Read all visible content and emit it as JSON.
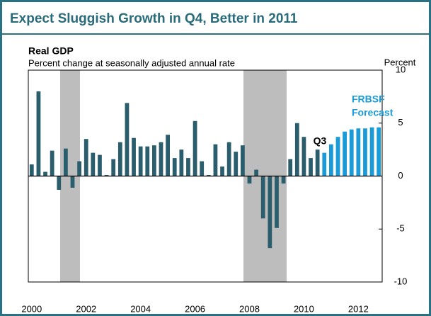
{
  "chart_data": {
    "type": "bar",
    "title": "Expect Sluggish Growth in Q4, Better in 2011",
    "subtitle": "Real GDP",
    "y_axis_label": "Percent change at seasonally adjusted annual rate",
    "y_unit_label": "Percent",
    "annotations": [
      "Q3",
      "FRBSF",
      "Forecast"
    ],
    "categories": [
      "2000",
      null,
      null,
      null,
      null,
      null,
      null,
      null,
      "2002",
      null,
      null,
      null,
      null,
      null,
      null,
      null,
      "2004",
      null,
      null,
      null,
      null,
      null,
      null,
      null,
      "2006",
      null,
      null,
      null,
      null,
      null,
      null,
      null,
      "2008",
      null,
      null,
      null,
      null,
      null,
      null,
      null,
      "2010",
      null,
      null,
      null,
      null,
      null,
      null,
      null,
      "2012",
      null,
      null,
      null
    ],
    "series": [
      {
        "color": "#2b5e6c",
        "values": [
          1.1,
          8.0,
          0.4,
          2.4,
          -1.3,
          2.6,
          -1.1,
          1.4,
          3.5,
          2.2,
          2.0,
          0.1,
          1.6,
          3.2,
          6.9,
          3.6,
          2.8,
          2.8,
          2.9,
          3.2,
          3.9,
          1.7,
          2.5,
          1.7,
          5.2,
          1.4,
          0.1,
          3.0,
          0.9,
          3.2,
          2.3,
          2.9,
          -0.7,
          0.6,
          -4.0,
          -6.8,
          -4.9,
          -0.7,
          1.6,
          5.0,
          3.7,
          1.7,
          2.5,
          null,
          null,
          null,
          null,
          null,
          null,
          null,
          null,
          null
        ]
      },
      {
        "color": "#1a9bd7",
        "values": [
          null,
          null,
          null,
          null,
          null,
          null,
          null,
          null,
          null,
          null,
          null,
          null,
          null,
          null,
          null,
          null,
          null,
          null,
          null,
          null,
          null,
          null,
          null,
          null,
          null,
          null,
          null,
          null,
          null,
          null,
          null,
          null,
          null,
          null,
          null,
          null,
          null,
          null,
          null,
          null,
          null,
          null,
          null,
          2.2,
          3.0,
          3.7,
          4.2,
          4.4,
          4.5,
          4.5,
          4.6,
          4.6
        ]
      }
    ],
    "ylim": [
      -10,
      10
    ],
    "yticks": [
      -10,
      -5,
      0,
      5,
      10
    ]
  }
}
